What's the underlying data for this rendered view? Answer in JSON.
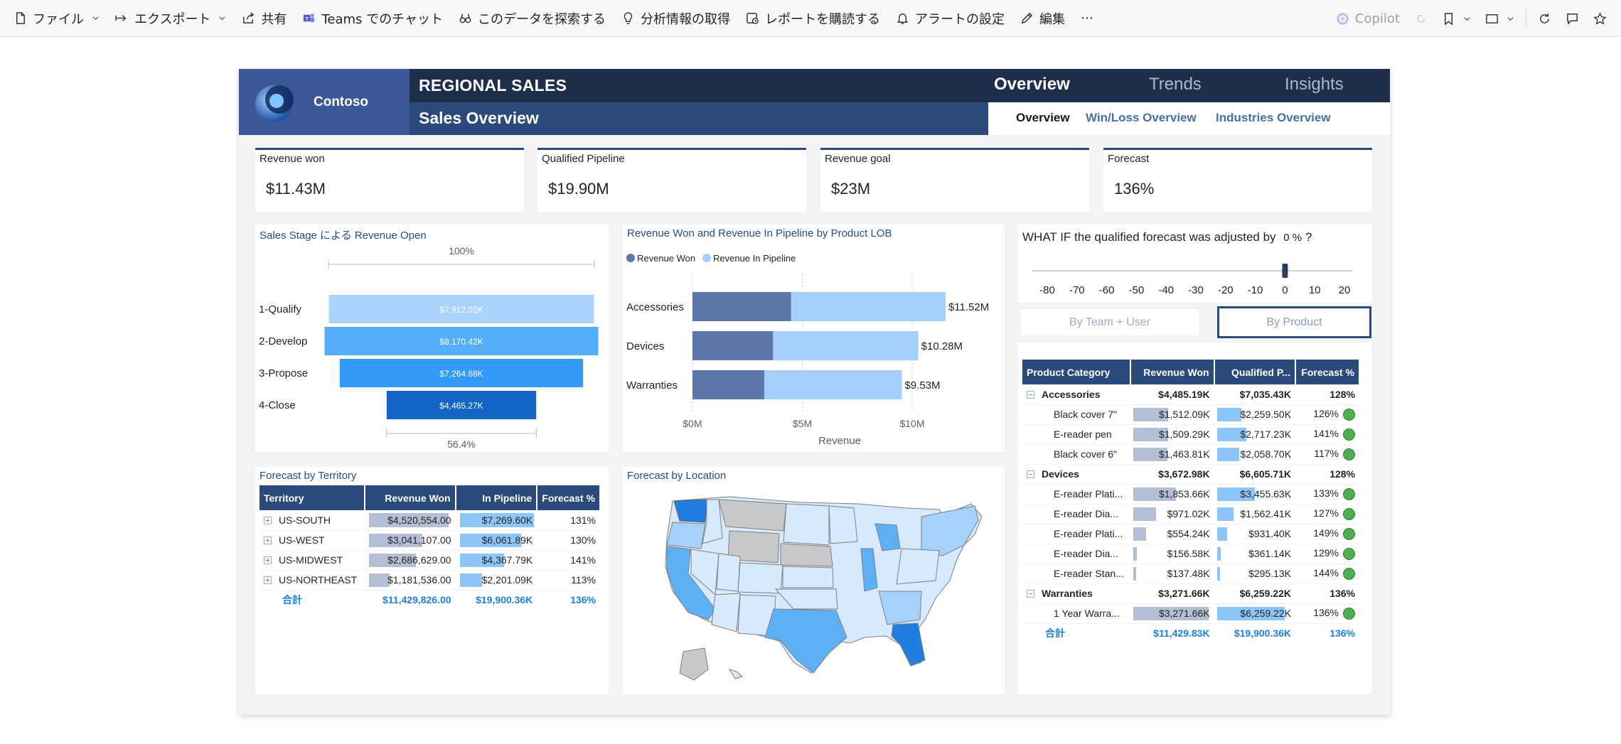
{
  "toolbar": {
    "items": [
      {
        "label": "ファイル",
        "icon": "file-icon",
        "chevron": true
      },
      {
        "label": "エクスポート",
        "icon": "export-icon",
        "chevron": true
      },
      {
        "label": "共有",
        "icon": "share-icon",
        "chevron": false
      },
      {
        "label": "Teams でのチャット",
        "icon": "teams-icon",
        "chevron": false
      },
      {
        "label": "このデータを探索する",
        "icon": "explore-icon",
        "chevron": false
      },
      {
        "label": "分析情報の取得",
        "icon": "lightbulb-icon",
        "chevron": false
      },
      {
        "label": "レポートを購読する",
        "icon": "subscribe-icon",
        "chevron": false
      },
      {
        "label": "アラートの設定",
        "icon": "bell-icon",
        "chevron": false
      },
      {
        "label": "編集",
        "icon": "pencil-icon",
        "chevron": false
      },
      {
        "label": "⋯",
        "icon": "more-icon",
        "chevron": false
      }
    ],
    "copilot_label": "Copilot"
  },
  "header": {
    "brand": "Contoso",
    "title": "REGIONAL SALES",
    "subtitle": "Sales Overview",
    "tabs": [
      "Overview",
      "Trends",
      "Insights"
    ],
    "subtabs": [
      "Overview",
      "Win/Loss Overview",
      "Industries Overview"
    ]
  },
  "kpis": [
    {
      "label": "Revenue won",
      "value": "$11.43M"
    },
    {
      "label": "Qualified Pipeline",
      "value": "$19.90M"
    },
    {
      "label": "Revenue goal",
      "value": "$23M"
    },
    {
      "label": "Forecast",
      "value": "136%"
    }
  ],
  "funnel": {
    "title": "Sales Stage による Revenue Open",
    "top_label": "100%",
    "bottom_label": "56.4%",
    "stages": [
      "1-Qualify",
      "2-Develop",
      "3-Propose",
      "4-Close"
    ],
    "values": [
      7912.02,
      8170.42,
      7264.68,
      4465.27
    ],
    "labels": [
      "$7,912.02K",
      "$8,170.42K",
      "$7,264.68K",
      "$4,465.27K"
    ],
    "colors": [
      "#a9d3fb",
      "#54aef9",
      "#3199f6",
      "#1366c4"
    ]
  },
  "lob_chart": {
    "title": "Revenue Won and Revenue In Pipeline by Product LOB",
    "legend": [
      "Revenue Won",
      "Revenue In Pipeline"
    ],
    "colors": [
      "#5b78a8",
      "#a3d0fb"
    ],
    "categories": [
      "Accessories",
      "Devices",
      "Warranties"
    ],
    "won": [
      4.49,
      3.67,
      3.27
    ],
    "pipeline": [
      7.03,
      6.61,
      6.26
    ],
    "total_labels": [
      "$11.52M",
      "$10.28M",
      "$9.53M"
    ],
    "xticks": [
      "$0M",
      "$5M",
      "$10M"
    ],
    "xlabel": "Revenue"
  },
  "chart_data": {
    "type": "bar",
    "title": "Revenue Won and Revenue In Pipeline by Product LOB",
    "categories": [
      "Accessories",
      "Devices",
      "Warranties"
    ],
    "series": [
      {
        "name": "Revenue Won",
        "values": [
          4.49,
          3.67,
          3.27
        ]
      },
      {
        "name": "Revenue In Pipeline",
        "values": [
          7.03,
          6.61,
          6.26
        ]
      }
    ],
    "xlabel": "Revenue",
    "xlim": [
      0,
      12
    ]
  },
  "whatif": {
    "title": "WHAT IF the qualified forecast was adjusted by",
    "value": "0 %",
    "suffix": "?",
    "ticks": [
      "-80",
      "-70",
      "-60",
      "-50",
      "-40",
      "-30",
      "-20",
      "-10",
      "0",
      "10",
      "20"
    ],
    "level": 0
  },
  "slicer": {
    "options": [
      "By Team + User",
      "By Product"
    ],
    "selected": "By Product"
  },
  "product_table": {
    "headers": [
      "Product Category",
      "Revenue Won",
      "Qualified P...",
      "Forecast %"
    ],
    "rows": [
      {
        "type": "group",
        "name": "Accessories",
        "won": "$4,485.19K",
        "pipe": "$7,035.43K",
        "fc": "128%"
      },
      {
        "type": "sub",
        "name": "Black cover 7\"",
        "won": "$1,512.09K",
        "pipe": "$2,259.50K",
        "fc": "126%",
        "won_frac": 0.46,
        "pipe_frac": 0.33
      },
      {
        "type": "sub",
        "name": "E-reader pen",
        "won": "$1,509.29K",
        "pipe": "$2,717.23K",
        "fc": "141%",
        "won_frac": 0.46,
        "pipe_frac": 0.4
      },
      {
        "type": "sub",
        "name": "Black cover 6\"",
        "won": "$1,463.81K",
        "pipe": "$2,058.70K",
        "fc": "117%",
        "won_frac": 0.45,
        "pipe_frac": 0.3
      },
      {
        "type": "group",
        "name": "Devices",
        "won": "$3,672.98K",
        "pipe": "$6,605.71K",
        "fc": "128%"
      },
      {
        "type": "sub",
        "name": "E-reader Plati...",
        "won": "$1,853.66K",
        "pipe": "$3,455.63K",
        "fc": "133%",
        "won_frac": 0.57,
        "pipe_frac": 0.51
      },
      {
        "type": "sub",
        "name": "E-reader Dia...",
        "won": "$971.02K",
        "pipe": "$1,562.41K",
        "fc": "127%",
        "won_frac": 0.3,
        "pipe_frac": 0.23
      },
      {
        "type": "sub",
        "name": "E-reader Plati...",
        "won": "$554.24K",
        "pipe": "$931.40K",
        "fc": "149%",
        "won_frac": 0.17,
        "pipe_frac": 0.14
      },
      {
        "type": "sub",
        "name": "E-reader Dia...",
        "won": "$156.58K",
        "pipe": "$361.14K",
        "fc": "129%",
        "won_frac": 0.05,
        "pipe_frac": 0.05
      },
      {
        "type": "sub",
        "name": "E-reader Stan...",
        "won": "$137.48K",
        "pipe": "$295.13K",
        "fc": "144%",
        "won_frac": 0.04,
        "pipe_frac": 0.04
      },
      {
        "type": "group",
        "name": "Warranties",
        "won": "$3,271.66K",
        "pipe": "$6,259.22K",
        "fc": "136%"
      },
      {
        "type": "sub",
        "name": "1 Year Warra...",
        "won": "$3,271.66K",
        "pipe": "$6,259.22K",
        "fc": "136%",
        "won_frac": 1.0,
        "pipe_frac": 0.92
      }
    ],
    "total": {
      "name": "合計",
      "won": "$11,429.83K",
      "pipe": "$19,900.36K",
      "fc": "136%"
    }
  },
  "territory_table": {
    "title": "Forecast by Territory",
    "headers": [
      "Territory",
      "Revenue Won",
      "In Pipeline",
      "Forecast %"
    ],
    "rows": [
      {
        "name": "US-SOUTH",
        "won": "$4,520,554.00",
        "pipe": "$7,269.60K",
        "fc": "131%",
        "won_frac": 1.0,
        "pipe_frac": 1.0
      },
      {
        "name": "US-WEST",
        "won": "$3,041,107.00",
        "pipe": "$6,061.89K",
        "fc": "130%",
        "won_frac": 0.67,
        "pipe_frac": 0.83
      },
      {
        "name": "US-MIDWEST",
        "won": "$2,686,629.00",
        "pipe": "$4,367.79K",
        "fc": "141%",
        "won_frac": 0.59,
        "pipe_frac": 0.6
      },
      {
        "name": "US-NORTHEAST",
        "won": "$1,181,536.00",
        "pipe": "$2,201.09K",
        "fc": "113%",
        "won_frac": 0.26,
        "pipe_frac": 0.3
      }
    ],
    "total": {
      "name": "合計",
      "won": "$11,429,826.00",
      "pipe": "$19,900.36K",
      "fc": "136%"
    }
  },
  "map": {
    "title": "Forecast by Location",
    "colors": {
      "highest": "#1e7fe0",
      "high": "#5eb0f5",
      "mid": "#a6d1fb",
      "low": "#d6e9fd",
      "none": "#c8c8c8"
    }
  }
}
